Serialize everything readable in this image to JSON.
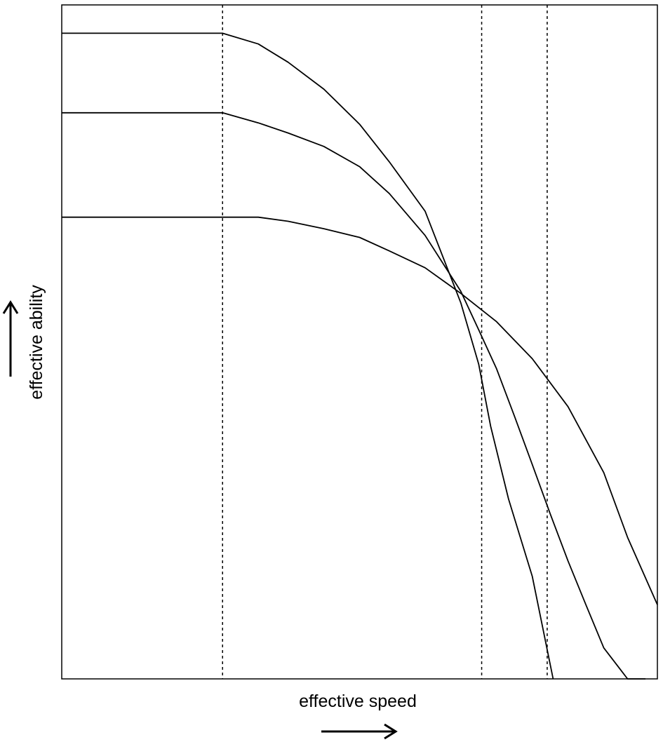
{
  "chart_data": {
    "type": "line",
    "title": "",
    "xlabel": "effective speed",
    "ylabel": "effective ability",
    "xlim": [
      0,
      100
    ],
    "ylim": [
      0,
      100
    ],
    "grid": false,
    "legend": "none",
    "series": [
      {
        "x": [
          0,
          27,
          33,
          38,
          44,
          50,
          55,
          61,
          67,
          70,
          72,
          75,
          79,
          82.5
        ],
        "y": [
          95.8,
          95.8,
          94.2,
          91.5,
          87.5,
          82.3,
          76.7,
          69.4,
          55.8,
          46.7,
          37.5,
          26.7,
          15.2,
          0
        ]
      },
      {
        "x": [
          0,
          27,
          33,
          38,
          44,
          50,
          55,
          61,
          67,
          70,
          73,
          76,
          79,
          82,
          85,
          88,
          91,
          95,
          98
        ],
        "y": [
          84.0,
          84.0,
          82.5,
          81.0,
          79.0,
          76.0,
          72.0,
          65.8,
          57.5,
          51.8,
          46.0,
          39.0,
          31.8,
          24.5,
          17.5,
          11.0,
          4.6,
          0,
          0
        ]
      },
      {
        "x": [
          0,
          33,
          38,
          44,
          50,
          55,
          61,
          67,
          73,
          79,
          85,
          91,
          95,
          100
        ],
        "y": [
          68.5,
          68.5,
          67.9,
          66.8,
          65.5,
          63.5,
          61.0,
          57.2,
          53.0,
          47.5,
          40.4,
          30.6,
          21.0,
          11.0
        ]
      }
    ],
    "reference_lines_x": [
      27,
      70.5,
      81.5
    ]
  },
  "colors": {
    "line": "#000000",
    "background": "#ffffff"
  }
}
